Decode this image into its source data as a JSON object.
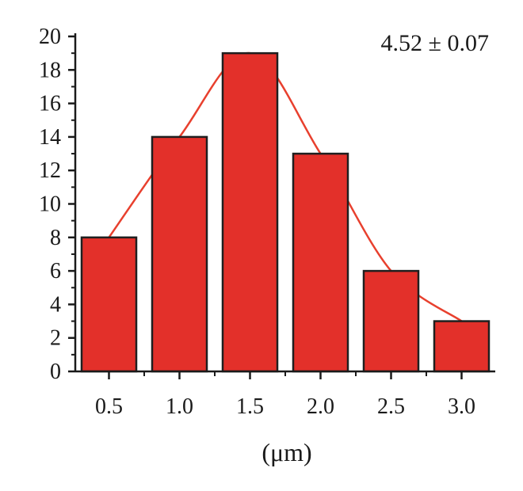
{
  "chart_data": {
    "type": "bar",
    "categories": [
      "0.5",
      "1.0",
      "1.5",
      "2.0",
      "2.5",
      "3.0"
    ],
    "values": [
      8,
      14,
      19,
      13,
      6,
      3
    ],
    "title": "",
    "xlabel": "(μm)",
    "ylabel": "",
    "ylim": [
      0,
      20
    ],
    "yticks": [
      0,
      2,
      4,
      6,
      8,
      10,
      12,
      14,
      16,
      18,
      20
    ],
    "annotation": "4.52 ± 0.07",
    "grid": false,
    "legend": "none",
    "fit_curve": true,
    "colors": {
      "bar": "#e3302a",
      "bar_edge": "#1f1f1f",
      "curve": "#e8402e",
      "axis": "#1a1a1a"
    }
  }
}
